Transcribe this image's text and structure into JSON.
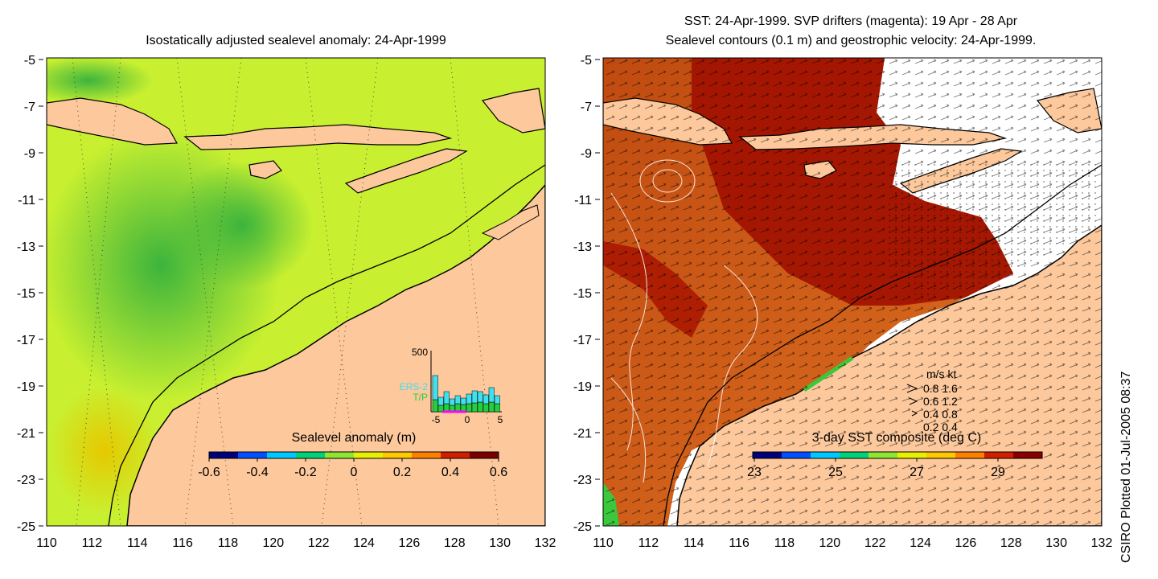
{
  "left_panel": {
    "title": "Isostatically adjusted sealevel anomaly: 24-Apr-1999",
    "colorbar": {
      "label": "Sealevel anomaly (m)",
      "ticks": [
        "-0.6",
        "-0.4",
        "-0.2",
        "0",
        "0.2",
        "0.4",
        "0.6"
      ],
      "colors": [
        "#00007a",
        "#0050ff",
        "#00c8ff",
        "#00d27a",
        "#8ce632",
        "#e6f000",
        "#ffc800",
        "#ff8000",
        "#d21e00",
        "#7a0000"
      ]
    },
    "histogram": {
      "ymax_label": "500",
      "legend": [
        "ERS-2",
        "T/P"
      ],
      "x_ticks": [
        "-5",
        "0",
        "5"
      ],
      "ers2_color": "#40e0f0",
      "tp_color": "#20d040"
    }
  },
  "right_panel": {
    "title_line1": "SST: 24-Apr-1999. SVP drifters (magenta): 19 Apr - 28 Apr",
    "title_line2": "Sealevel contours (0.1 m) and geostrophic velocity: 24-Apr-1999.",
    "colorbar": {
      "label": "3-day SST composite (deg C)",
      "ticks": [
        "23",
        "25",
        "27",
        "29"
      ],
      "colors": [
        "#00007a",
        "#0050ff",
        "#00c8ff",
        "#00d27a",
        "#8ce632",
        "#e6f000",
        "#ffc800",
        "#ff8000",
        "#d21e00",
        "#8a0000"
      ]
    },
    "velocity_key": {
      "header": "m/s  kt",
      "rows": [
        "0.8  1.6",
        "0.6  1.2",
        "0.4  0.8",
        "0.2  0.4"
      ]
    }
  },
  "axes": {
    "y_ticks": [
      "-5",
      "-7",
      "-9",
      "-11",
      "-13",
      "-15",
      "-17",
      "-19",
      "-21",
      "-23",
      "-25"
    ],
    "x_ticks": [
      "110",
      "112",
      "114",
      "116",
      "118",
      "120",
      "122",
      "124",
      "126",
      "128",
      "130",
      "132"
    ]
  },
  "side_label": "CSIRO Plotted 01-Jul-2005 08:37",
  "colors": {
    "land": "#fcc89c",
    "ocean_green": "#a8e830",
    "ocean_dark_green": "#50c83c",
    "sst_dark_red": "#a01000",
    "sst_orange": "#c84010"
  }
}
